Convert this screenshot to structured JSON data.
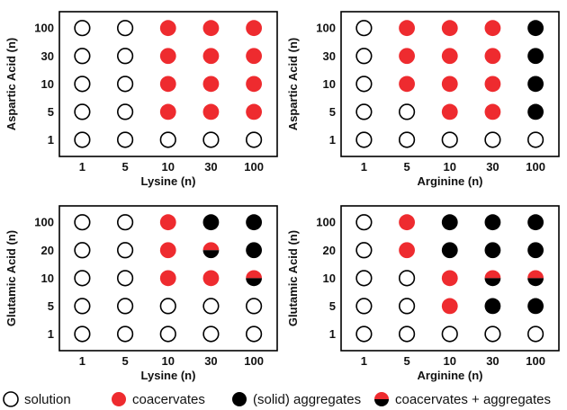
{
  "legend": {
    "solution": "solution",
    "coacervates": "coacervates",
    "aggregates": "(solid) aggregates",
    "mixed": "coacervates + aggregates"
  },
  "colors": {
    "coacervate": "#ee2b2f",
    "aggregate": "#000000",
    "solution": "#ffffff"
  },
  "chart_data": [
    {
      "type": "table",
      "xlabel": "Lysine (n)",
      "ylabel": "Aspartic Acid (n)",
      "x_categories": [
        "1",
        "5",
        "10",
        "30",
        "100"
      ],
      "y_categories": [
        "100",
        "30",
        "10",
        "5",
        "1"
      ],
      "states": [
        [
          "solution",
          "solution",
          "coacervates",
          "coacervates",
          "coacervates"
        ],
        [
          "solution",
          "solution",
          "coacervates",
          "coacervates",
          "coacervates"
        ],
        [
          "solution",
          "solution",
          "coacervates",
          "coacervates",
          "coacervates"
        ],
        [
          "solution",
          "solution",
          "coacervates",
          "coacervates",
          "coacervates"
        ],
        [
          "solution",
          "solution",
          "solution",
          "solution",
          "solution"
        ]
      ]
    },
    {
      "type": "table",
      "xlabel": "Arginine (n)",
      "ylabel": "Aspartic Acid (n)",
      "x_categories": [
        "1",
        "5",
        "10",
        "30",
        "100"
      ],
      "y_categories": [
        "100",
        "30",
        "10",
        "5",
        "1"
      ],
      "states": [
        [
          "solution",
          "coacervates",
          "coacervates",
          "coacervates",
          "aggregates"
        ],
        [
          "solution",
          "coacervates",
          "coacervates",
          "coacervates",
          "aggregates"
        ],
        [
          "solution",
          "coacervates",
          "coacervates",
          "coacervates",
          "aggregates"
        ],
        [
          "solution",
          "solution",
          "coacervates",
          "coacervates",
          "aggregates"
        ],
        [
          "solution",
          "solution",
          "solution",
          "solution",
          "solution"
        ]
      ]
    },
    {
      "type": "table",
      "xlabel": "Lysine (n)",
      "ylabel": "Glutamic Acid (n)",
      "x_categories": [
        "1",
        "5",
        "10",
        "30",
        "100"
      ],
      "y_categories": [
        "100",
        "20",
        "10",
        "5",
        "1"
      ],
      "states": [
        [
          "solution",
          "solution",
          "coacervates",
          "aggregates",
          "aggregates"
        ],
        [
          "solution",
          "solution",
          "coacervates",
          "mixed",
          "aggregates"
        ],
        [
          "solution",
          "solution",
          "coacervates",
          "coacervates",
          "mixed"
        ],
        [
          "solution",
          "solution",
          "solution",
          "solution",
          "solution"
        ],
        [
          "solution",
          "solution",
          "solution",
          "solution",
          "solution"
        ]
      ]
    },
    {
      "type": "table",
      "xlabel": "Arginine (n)",
      "ylabel": "Glutamic Acid (n)",
      "x_categories": [
        "1",
        "5",
        "10",
        "30",
        "100"
      ],
      "y_categories": [
        "100",
        "20",
        "10",
        "5",
        "1"
      ],
      "states": [
        [
          "solution",
          "coacervates",
          "aggregates",
          "aggregates",
          "aggregates"
        ],
        [
          "solution",
          "coacervates",
          "aggregates",
          "aggregates",
          "aggregates"
        ],
        [
          "solution",
          "solution",
          "coacervates",
          "mixed",
          "mixed"
        ],
        [
          "solution",
          "solution",
          "coacervates",
          "aggregates",
          "aggregates"
        ],
        [
          "solution",
          "solution",
          "solution",
          "solution",
          "solution"
        ]
      ]
    }
  ]
}
